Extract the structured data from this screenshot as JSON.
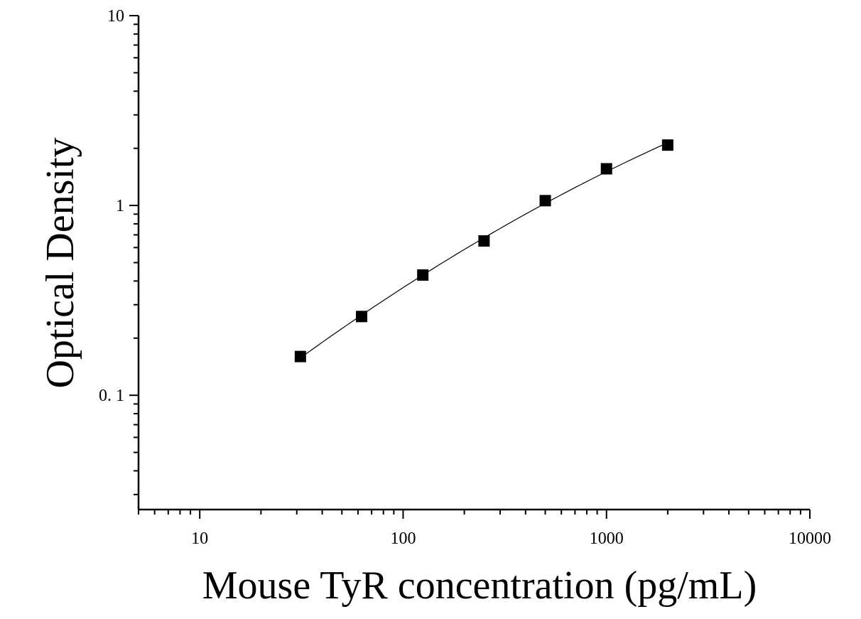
{
  "chart_data": {
    "type": "scatter",
    "title": "",
    "xlabel": "Mouse TyR concentration (pg/mL)",
    "ylabel": "Optical Density",
    "x_scale": "log",
    "y_scale": "log",
    "xlim": [
      5,
      10000
    ],
    "ylim": [
      0.025,
      10
    ],
    "x_ticks": [
      {
        "value": 10,
        "label": "10"
      },
      {
        "value": 100,
        "label": "100"
      },
      {
        "value": 1000,
        "label": "1000"
      },
      {
        "value": 10000,
        "label": "10000"
      }
    ],
    "y_ticks": [
      {
        "value": 0.1,
        "label": "0. 1"
      },
      {
        "value": 1,
        "label": "1"
      },
      {
        "value": 10,
        "label": "10"
      }
    ],
    "grid": false,
    "legend": "none",
    "series": [
      {
        "marker": "square",
        "color": "#000000",
        "points": [
          {
            "x": 31.25,
            "y": 0.16
          },
          {
            "x": 62.5,
            "y": 0.26
          },
          {
            "x": 125,
            "y": 0.43
          },
          {
            "x": 250,
            "y": 0.65
          },
          {
            "x": 500,
            "y": 1.06
          },
          {
            "x": 1000,
            "y": 1.56
          },
          {
            "x": 2000,
            "y": 2.08
          }
        ],
        "fit_curve": true
      }
    ]
  }
}
